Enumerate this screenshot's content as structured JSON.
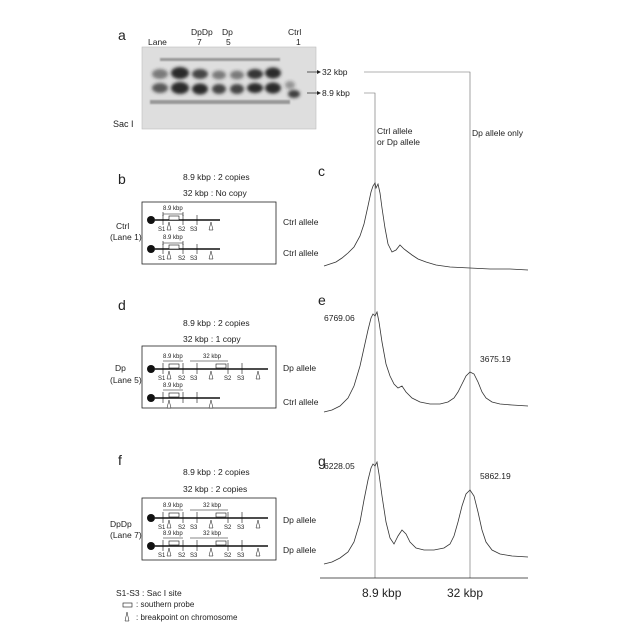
{
  "panel_labels": {
    "a": "a",
    "b": "b",
    "c": "c",
    "d": "d",
    "e": "e",
    "f": "f",
    "g": "g"
  },
  "gel": {
    "lane_label": "Lane",
    "dpdp": "DpDp",
    "dpdp_num": "7",
    "dp": "Dp",
    "dp_num": "5",
    "ctrl": "Ctrl",
    "ctrl_num": "1",
    "enzyme": "Sac I",
    "marker_32": "32 kbp",
    "marker_89": "8.9 kbp"
  },
  "columns": {
    "ctrl_or_dp_1": "Ctrl allele",
    "ctrl_or_dp_2": "or Dp allele",
    "dp_only": "Dp allele only"
  },
  "rows": {
    "b": {
      "copy1": "8.9 kbp : 2 copies",
      "copy2": "32 kbp : No copy",
      "sample": "Ctrl",
      "lane": "(Lane 1)",
      "allele1": "Ctrl allele",
      "allele2": "Ctrl allele"
    },
    "d": {
      "copy1": "8.9 kbp : 2 copies",
      "copy2": "32 kbp : 1 copy",
      "sample": "Dp",
      "lane": "(Lane 5)",
      "allele1": "Dp allele",
      "allele2": "Ctrl allele"
    },
    "f": {
      "copy1": "8.9 kbp : 2 copies",
      "copy2": "32 kbp : 2 copies",
      "sample": "DpDp",
      "lane": "(Lane 7)",
      "allele1": "Dp allele",
      "allele2": "Dp allele"
    }
  },
  "diagram_labels": {
    "kbp89": "8.9 kbp",
    "kbp32": "32 kbp",
    "s1": "S1",
    "s2": "S2",
    "s3": "S3"
  },
  "peaks": {
    "e_left": "6769.06",
    "e_right": "3675.19",
    "g_left": "6228.05",
    "g_right": "5862.19"
  },
  "axis": {
    "left": "8.9 kbp",
    "right": "32 kbp"
  },
  "legend": {
    "sites": "S1-S3 : Sac I site",
    "probe": ": southern probe",
    "breakpoint": ": breakpoint on chromosome"
  },
  "colors": {
    "ink": "#222222",
    "gel_bg": "#d9d9d9",
    "band": "#2a2a2a"
  }
}
